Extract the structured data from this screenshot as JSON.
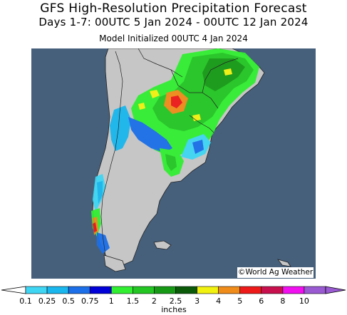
{
  "title": "GFS High-Resolution Precipitation Forecast",
  "subtitle": "Days 1-7: 00UTC 5 Jan 2024 - 00UTC 12 Jan 2024",
  "init_line": "Model Initialized 00UTC 4 Jan 2024",
  "copyright": "©World Ag Weather",
  "legend": {
    "units": "inches",
    "ticks": [
      "0.1",
      "0.25",
      "0.5",
      "0.75",
      "1",
      "1.5",
      "2",
      "2.5",
      "3",
      "4",
      "5",
      "6",
      "8",
      "10"
    ],
    "colors": [
      "#3fd6f4",
      "#1ab7ee",
      "#1c6fe8",
      "#0000d8",
      "#32ef32",
      "#23c623",
      "#169a16",
      "#0a5a0a",
      "#f2f210",
      "#ef8c1a",
      "#ee1a1a",
      "#c8104f",
      "#f010f0",
      "#9a5ad2"
    ]
  },
  "map": {
    "ocean_color": "#46607c",
    "land_color": "#c6c6c6"
  }
}
